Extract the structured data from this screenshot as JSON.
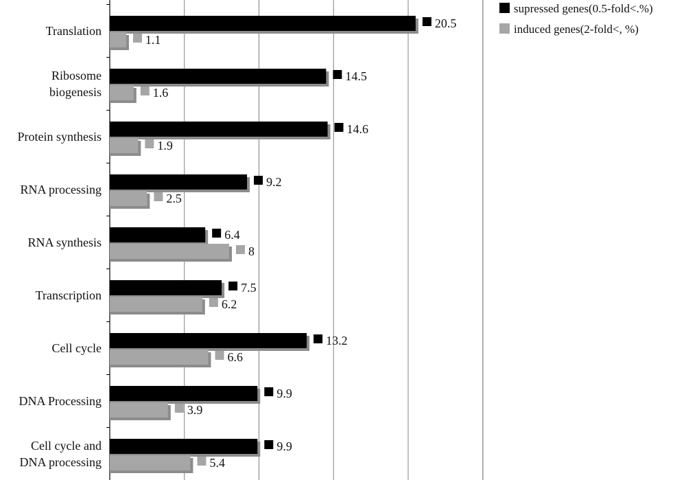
{
  "chart_data": {
    "type": "bar",
    "orientation": "horizontal",
    "categories": [
      [
        "Translation"
      ],
      [
        "Ribosome",
        "biogenesis"
      ],
      [
        "Protein synthesis"
      ],
      [
        "RNA processing"
      ],
      [
        "RNA synthesis"
      ],
      [
        "Transcription"
      ],
      [
        "Cell cycle"
      ],
      [
        "DNA Processing"
      ],
      [
        "Cell cycle and",
        "DNA processing"
      ]
    ],
    "series": [
      {
        "name": "supressed genes(0.5-fold<.%)",
        "color": "#000000",
        "values": [
          20.5,
          14.5,
          14.6,
          9.2,
          6.4,
          7.5,
          13.2,
          9.9,
          9.9
        ]
      },
      {
        "name": "induced genes(2-fold<, %)",
        "color": "#a6a6a6",
        "values": [
          1.1,
          1.6,
          1.9,
          2.5,
          8,
          6.2,
          6.6,
          3.9,
          5.4
        ]
      }
    ],
    "data_labels": {
      "series_0": [
        "20.5",
        "14.5",
        "14.6",
        "9.2",
        "6.4",
        "7.5",
        "13.2",
        "9.9",
        "9.9"
      ],
      "series_1": [
        "1.1",
        "1.6",
        "1.9",
        "2.5",
        "8",
        "6.2",
        "6.6",
        "3.9",
        "5.4"
      ]
    },
    "xlim": [
      0,
      25
    ],
    "gridlines": "vertical",
    "legend_position": "top-right",
    "title": "",
    "xlabel": "",
    "ylabel": ""
  }
}
